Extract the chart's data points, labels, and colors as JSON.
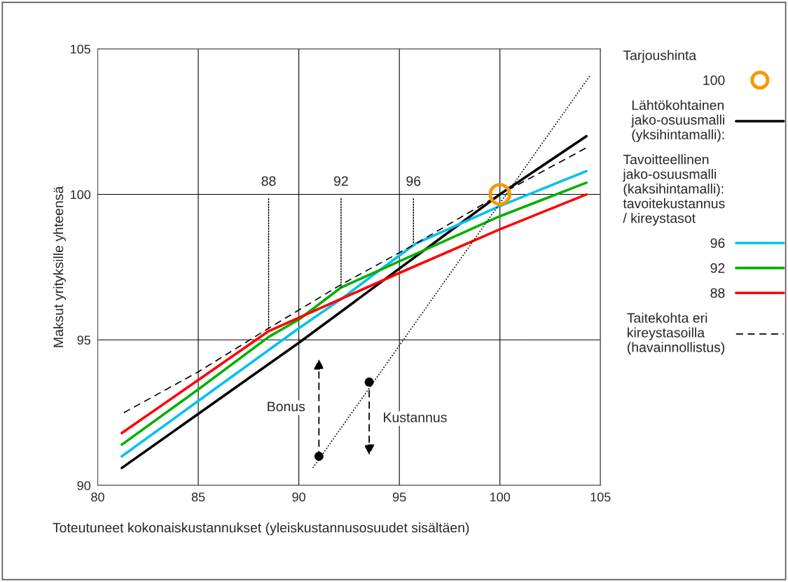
{
  "chart_data": {
    "type": "line",
    "xlabel": "Toteutuneet kokonaiskustannukset (yleiskustannusosuudet sisältäen)",
    "ylabel": "Maksut yrityksille yhteensä",
    "legend_title": "Tarjoushinta",
    "xlim": [
      80,
      105
    ],
    "ylim": [
      90,
      105
    ],
    "xticks": [
      80,
      85,
      90,
      95,
      100,
      105
    ],
    "yticks": [
      90,
      95,
      100,
      105
    ],
    "grid": true,
    "legend": "right",
    "series": [
      {
        "name": "100",
        "type": "scatter",
        "color": "#f59a00",
        "marker": "circle",
        "x": [
          100
        ],
        "values": [
          100
        ]
      },
      {
        "name": "Lähtökohtainen\njako-osuusmalli\n(yksihintamalli):",
        "color": "#000000",
        "line_style": "solid",
        "x": [
          81.2,
          90,
          100,
          104.3
        ],
        "values": [
          90.6,
          94.9,
          100,
          102
        ]
      },
      {
        "name": "96",
        "color": "#00c0f0",
        "line_style": "solid",
        "x": [
          81.2,
          85,
          90,
          92.1,
          95,
          95.8,
          100,
          104.3
        ],
        "values": [
          91.0,
          92.9,
          95.4,
          96.4,
          97.9,
          98.3,
          99.6,
          100.8
        ]
      },
      {
        "name": "92",
        "color": "#00b000",
        "line_style": "solid",
        "x": [
          81.2,
          85,
          88.5,
          90,
          92.1,
          95,
          100,
          104.3
        ],
        "values": [
          91.4,
          93.3,
          95.1,
          95.7,
          96.8,
          97.7,
          99.25,
          100.4
        ]
      },
      {
        "name": "88",
        "color": "#ff0000",
        "line_style": "solid",
        "x": [
          81.2,
          88.5,
          95,
          100,
          104.3
        ],
        "values": [
          91.8,
          95.3,
          97.3,
          98.8,
          100
        ]
      },
      {
        "name": "Taitekohta eri\nkireystasoilla\n(havainnollistus)",
        "color": "#000000",
        "line_style": "dashed",
        "x": [
          81.3,
          85,
          88.5,
          92.1,
          95.8,
          100,
          104.3
        ],
        "values": [
          92.5,
          93.9,
          95.4,
          96.9,
          98.3,
          100,
          101.6
        ]
      },
      {
        "color": "#000000",
        "line_style": "dotted",
        "x": [
          90.7,
          104.5
        ],
        "values": [
          90.6,
          104.1
        ]
      },
      {
        "type": "scatter",
        "color": "#000000",
        "marker": "circle",
        "x": [
          91,
          93.5
        ],
        "values": [
          91,
          93.55
        ]
      }
    ],
    "annotations": [
      "Tavoitteellinen\njako-osuusmalli\n(kaksihintamalli):\ntavoitekustannus\n/ kireystasot",
      "Bonus",
      "Kustannus",
      {
        "text": "88",
        "x": 88.5,
        "y": 95.4
      },
      {
        "text": "92",
        "x": 92.1,
        "y": 96.8
      },
      {
        "text": "96",
        "x": 95.7,
        "y": 98.3
      }
    ]
  }
}
